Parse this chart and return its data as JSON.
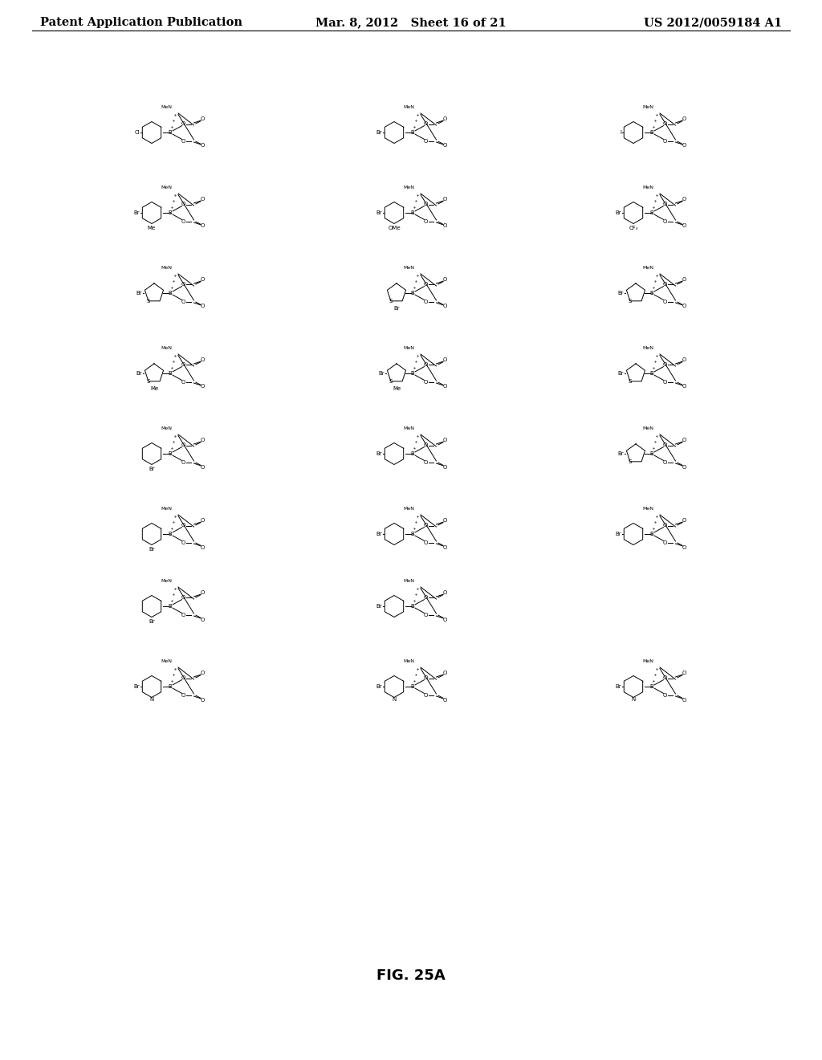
{
  "background_color": "#ffffff",
  "header_left": "Patent Application Publication",
  "header_center": "Mar. 8, 2012   Sheet 16 of 21",
  "header_right": "US 2012/0059184 A1",
  "figure_caption": "FIG. 25A",
  "page_width": 10.24,
  "page_height": 13.2,
  "dpi": 100,
  "header_fontsize": 10.5,
  "caption_fontsize": 13
}
